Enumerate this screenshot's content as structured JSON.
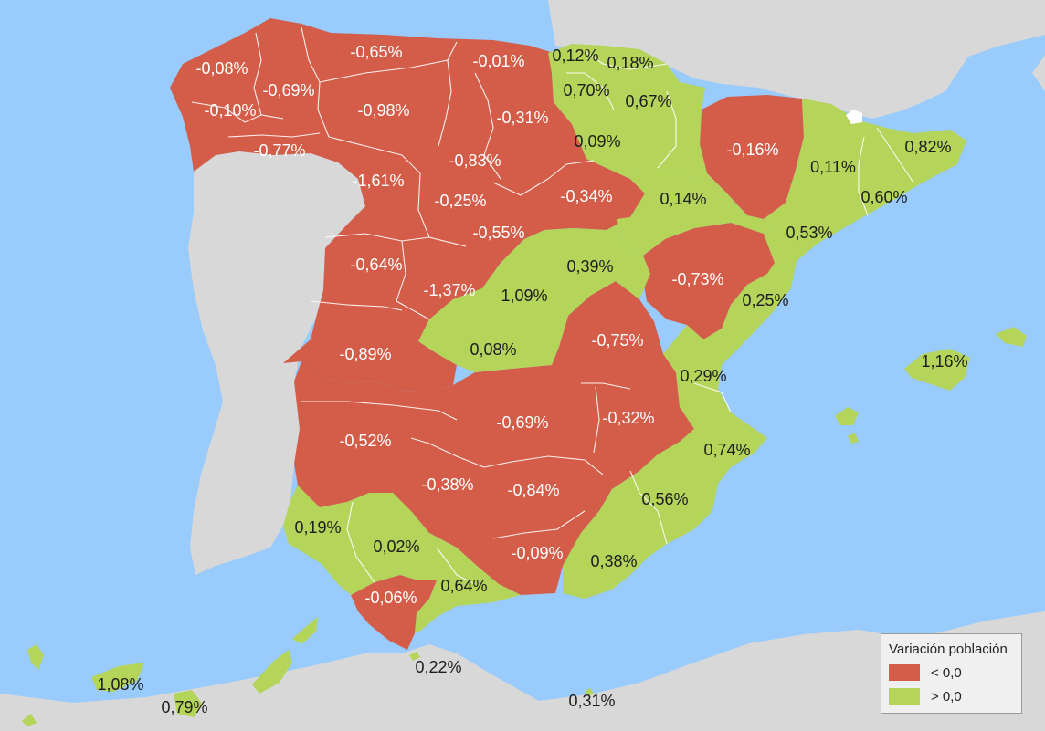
{
  "colors": {
    "sea": "#99cbfd",
    "land": "#d8d8d8",
    "negative": "#d45d4a",
    "positive": "#b4d45a",
    "andorra": "#ffffff"
  },
  "legend": {
    "title": "Variación población",
    "items": [
      {
        "label": "< 0,0",
        "color": "#d45d4a"
      },
      {
        "label": "> 0,0",
        "color": "#b4d45a"
      }
    ]
  },
  "regions": [
    {
      "name": "A Coruña",
      "value": "-0,08%",
      "category": "negative"
    },
    {
      "name": "Lugo",
      "value": "-0,69%",
      "category": "negative"
    },
    {
      "name": "Pontevedra",
      "value": "-0,10%",
      "category": "negative"
    },
    {
      "name": "Ourense",
      "value": "-0,77%",
      "category": "negative"
    },
    {
      "name": "Asturias",
      "value": "-0,65%",
      "category": "negative"
    },
    {
      "name": "Cantabria",
      "value": "-0,01%",
      "category": "negative"
    },
    {
      "name": "Bizkaia",
      "value": "0,12%",
      "category": "positive"
    },
    {
      "name": "Gipuzkoa",
      "value": "0,18%",
      "category": "positive"
    },
    {
      "name": "Álava",
      "value": "0,70%",
      "category": "positive"
    },
    {
      "name": "Navarra",
      "value": "0,67%",
      "category": "positive"
    },
    {
      "name": "León",
      "value": "-0,98%",
      "category": "negative"
    },
    {
      "name": "Burgos",
      "value": "-0,31%",
      "category": "negative"
    },
    {
      "name": "La Rioja",
      "value": "0,09%",
      "category": "positive"
    },
    {
      "name": "Palencia",
      "value": "-0,83%",
      "category": "negative"
    },
    {
      "name": "Zamora",
      "value": "-1,61%",
      "category": "negative"
    },
    {
      "name": "Valladolid",
      "value": "-0,25%",
      "category": "negative"
    },
    {
      "name": "Soria",
      "value": "-0,34%",
      "category": "negative"
    },
    {
      "name": "Segovia",
      "value": "-0,55%",
      "category": "negative"
    },
    {
      "name": "Salamanca",
      "value": "-0,64%",
      "category": "negative"
    },
    {
      "name": "Ávila",
      "value": "-1,37%",
      "category": "negative"
    },
    {
      "name": "Huesca",
      "value": "-0,16%",
      "category": "negative"
    },
    {
      "name": "Zaragoza",
      "value": "0,14%",
      "category": "positive"
    },
    {
      "name": "Teruel",
      "value": "-0,73%",
      "category": "negative"
    },
    {
      "name": "Lleida",
      "value": "0,11%",
      "category": "positive"
    },
    {
      "name": "Girona",
      "value": "0,82%",
      "category": "positive"
    },
    {
      "name": "Barcelona",
      "value": "0,60%",
      "category": "positive"
    },
    {
      "name": "Tarragona",
      "value": "0,53%",
      "category": "positive"
    },
    {
      "name": "Guadalajara",
      "value": "0,39%",
      "category": "positive"
    },
    {
      "name": "Madrid",
      "value": "1,09%",
      "category": "positive"
    },
    {
      "name": "Castellón",
      "value": "0,25%",
      "category": "positive"
    },
    {
      "name": "Toledo",
      "value": "0,08%",
      "category": "positive"
    },
    {
      "name": "Cuenca",
      "value": "-0,75%",
      "category": "negative"
    },
    {
      "name": "Cáceres",
      "value": "-0,89%",
      "category": "negative"
    },
    {
      "name": "Valencia",
      "value": "0,29%",
      "category": "positive"
    },
    {
      "name": "Islas Baleares",
      "value": "1,16%",
      "category": "positive"
    },
    {
      "name": "Ciudad Real",
      "value": "-0,69%",
      "category": "negative"
    },
    {
      "name": "Albacete",
      "value": "-0,32%",
      "category": "negative"
    },
    {
      "name": "Badajoz",
      "value": "-0,52%",
      "category": "negative"
    },
    {
      "name": "Alicante",
      "value": "0,74%",
      "category": "positive"
    },
    {
      "name": "Córdoba",
      "value": "-0,38%",
      "category": "negative"
    },
    {
      "name": "Jaén",
      "value": "-0,84%",
      "category": "negative"
    },
    {
      "name": "Murcia",
      "value": "0,56%",
      "category": "positive"
    },
    {
      "name": "Huelva",
      "value": "0,19%",
      "category": "positive"
    },
    {
      "name": "Sevilla",
      "value": "0,02%",
      "category": "positive"
    },
    {
      "name": "Granada",
      "value": "-0,09%",
      "category": "negative"
    },
    {
      "name": "Almería",
      "value": "0,38%",
      "category": "positive"
    },
    {
      "name": "Málaga",
      "value": "0,64%",
      "category": "positive"
    },
    {
      "name": "Cádiz",
      "value": "-0,06%",
      "category": "negative"
    },
    {
      "name": "Ceuta",
      "value": "0,22%",
      "category": "positive"
    },
    {
      "name": "Melilla",
      "value": "0,31%",
      "category": "positive"
    },
    {
      "name": "Santa Cruz de Tenerife",
      "value": "1,08%",
      "category": "positive"
    },
    {
      "name": "Las Palmas",
      "value": "0,79%",
      "category": "positive"
    }
  ]
}
